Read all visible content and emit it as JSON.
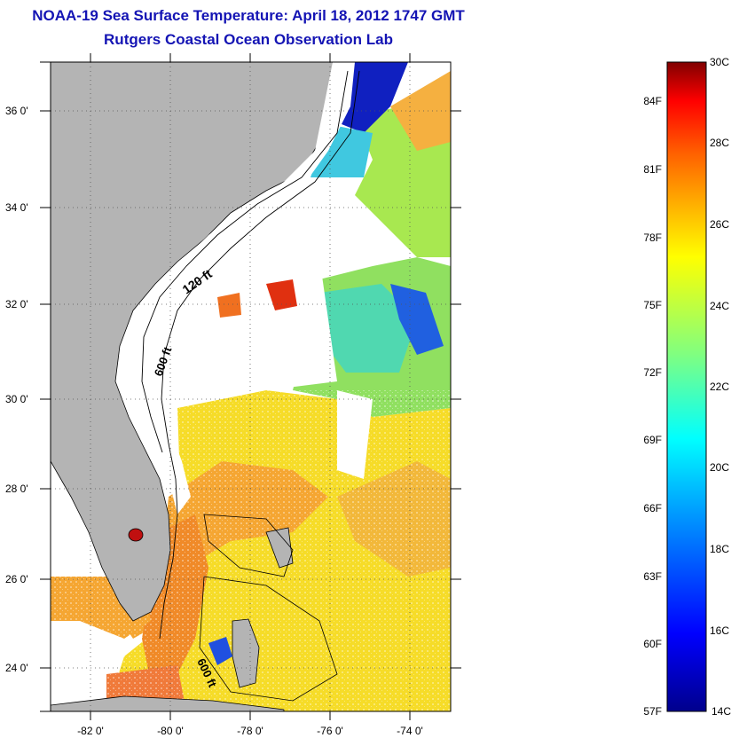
{
  "title_line1": "NOAA-19 Sea Surface Temperature:  April 18, 2012 1747 GMT",
  "title_line2": "Rutgers Coastal Ocean Observation Lab",
  "lat_labels": [
    "36 0'",
    "34 0'",
    "32 0'",
    "30 0'",
    "28 0'",
    "26 0'",
    "24 0'"
  ],
  "lon_labels": [
    "-82 0'",
    "-80 0'",
    "-78 0'",
    "-76 0'",
    "-74 0'"
  ],
  "contour_labels": [
    "120 ft",
    "600 ft",
    "600 ft"
  ],
  "colorbar": {
    "fahrenheit": [
      "84F",
      "81F",
      "78F",
      "75F",
      "72F",
      "69F",
      "66F",
      "63F",
      "60F",
      "57F"
    ],
    "celsius": [
      "30C",
      "28C",
      "26C",
      "24C",
      "22C",
      "20C",
      "18C",
      "16C",
      "14C"
    ]
  },
  "colors": {
    "land": "#b4b4b4",
    "title": "#1414b4",
    "cloud": "#ffffff"
  }
}
